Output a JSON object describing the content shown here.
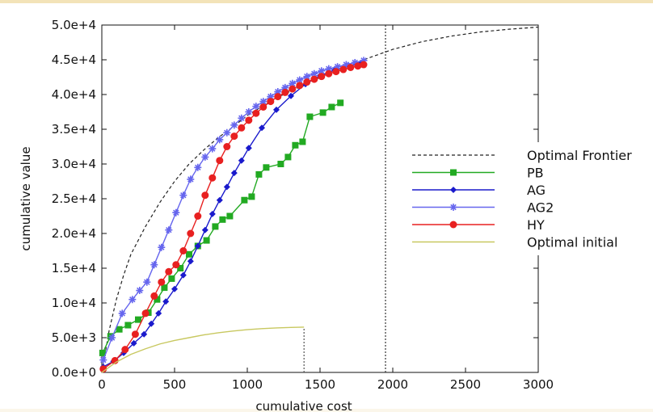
{
  "chart_data": {
    "type": "line",
    "title": "",
    "xlabel": "cumulative cost",
    "ylabel": "cumulative value",
    "xlim": [
      0,
      3000
    ],
    "ylim": [
      0,
      50000
    ],
    "x_ticks": [
      "0",
      "500",
      "1000",
      "1500",
      "2000",
      "2500",
      "3000"
    ],
    "x_tick_values": [
      0,
      500,
      1000,
      1500,
      2000,
      2500,
      3000
    ],
    "y_ticks": [
      "0.0e+0",
      "5.0e+3",
      "1.0e+4",
      "1.5e+4",
      "2.0e+4",
      "2.5e+4",
      "3.0e+4",
      "3.5e+4",
      "4.0e+4",
      "4.5e+4",
      "5.0e+4"
    ],
    "y_tick_values": [
      0,
      5000,
      10000,
      15000,
      20000,
      25000,
      30000,
      35000,
      40000,
      45000,
      50000
    ],
    "grid": false,
    "legend_position": "right",
    "vertical_markers": [
      {
        "x": 1390,
        "y_top": 6500,
        "color": "#555555"
      },
      {
        "x": 1950,
        "y_top": 50000,
        "color": "#333333"
      }
    ],
    "series": [
      {
        "name": "Optimal Frontier",
        "color": "#222222",
        "style": "dashed",
        "marker": "none",
        "x": [
          0,
          50,
          100,
          150,
          200,
          300,
          400,
          500,
          600,
          700,
          800,
          900,
          1000,
          1200,
          1400,
          1600,
          1800,
          2000,
          2200,
          2400,
          2600,
          2800,
          3000
        ],
        "y": [
          0,
          6000,
          10500,
          14000,
          17000,
          21000,
          24500,
          27500,
          30000,
          32000,
          33800,
          35300,
          37000,
          39500,
          41500,
          43400,
          45000,
          46500,
          47600,
          48400,
          49000,
          49400,
          49700
        ]
      },
      {
        "name": "PB",
        "color": "#22aa22",
        "style": "solid",
        "marker": "square",
        "x": [
          5,
          60,
          120,
          180,
          250,
          320,
          380,
          430,
          480,
          540,
          600,
          660,
          720,
          780,
          830,
          880,
          980,
          1030,
          1080,
          1130,
          1230,
          1280,
          1330,
          1380,
          1430,
          1520,
          1580,
          1640
        ],
        "y": [
          2800,
          5200,
          6200,
          6800,
          7600,
          8600,
          10500,
          12200,
          13500,
          15000,
          17000,
          18200,
          19000,
          21000,
          22000,
          22500,
          24800,
          25300,
          28500,
          29500,
          30000,
          31000,
          32700,
          33200,
          36800,
          37400,
          38200,
          38800
        ]
      },
      {
        "name": "AG",
        "color": "#1a1acc",
        "style": "solid",
        "marker": "diamond",
        "x": [
          10,
          80,
          150,
          220,
          290,
          340,
          390,
          440,
          500,
          560,
          610,
          660,
          710,
          760,
          810,
          860,
          910,
          960,
          1010,
          1100,
          1200,
          1300,
          1400,
          1500,
          1600,
          1700,
          1780
        ],
        "y": [
          800,
          1600,
          2800,
          4200,
          5500,
          7000,
          8500,
          10200,
          12000,
          14000,
          16000,
          18200,
          20500,
          22800,
          24800,
          26700,
          28700,
          30500,
          32300,
          35200,
          37800,
          39800,
          41500,
          42700,
          43500,
          44100,
          44500
        ]
      },
      {
        "name": "AG2",
        "color": "#6666ee",
        "style": "solid",
        "marker": "star",
        "x": [
          10,
          70,
          140,
          210,
          260,
          310,
          360,
          410,
          460,
          510,
          560,
          610,
          660,
          710,
          760,
          810,
          860,
          910,
          960,
          1010,
          1060,
          1110,
          1160,
          1210,
          1260,
          1310,
          1360,
          1410,
          1460,
          1510,
          1560,
          1620,
          1680,
          1740,
          1800
        ],
        "y": [
          1800,
          5000,
          8500,
          10500,
          11800,
          13000,
          15500,
          18000,
          20500,
          23000,
          25500,
          27800,
          29500,
          31000,
          32200,
          33500,
          34500,
          35600,
          36600,
          37500,
          38300,
          39000,
          39700,
          40400,
          41000,
          41600,
          42100,
          42600,
          43000,
          43400,
          43700,
          44000,
          44300,
          44600,
          44900
        ]
      },
      {
        "name": "HY",
        "color": "#e82020",
        "style": "solid",
        "marker": "circle",
        "x": [
          10,
          90,
          160,
          230,
          300,
          360,
          410,
          460,
          510,
          560,
          610,
          660,
          710,
          760,
          810,
          860,
          910,
          960,
          1010,
          1060,
          1110,
          1160,
          1210,
          1260,
          1310,
          1360,
          1410,
          1460,
          1510,
          1560,
          1610,
          1660,
          1710,
          1760,
          1800
        ],
        "y": [
          500,
          1700,
          3300,
          5500,
          8500,
          11000,
          13000,
          14500,
          15500,
          17500,
          20000,
          22500,
          25500,
          28000,
          30500,
          32500,
          34000,
          35200,
          36300,
          37300,
          38200,
          39000,
          39700,
          40300,
          40800,
          41300,
          41800,
          42200,
          42600,
          43000,
          43300,
          43600,
          43900,
          44100,
          44300
        ]
      },
      {
        "name": "Optimal initial",
        "color": "#c8c860",
        "style": "solid",
        "marker": "none",
        "x": [
          0,
          100,
          200,
          300,
          400,
          500,
          600,
          700,
          800,
          900,
          1000,
          1100,
          1200,
          1300,
          1390
        ],
        "y": [
          0,
          1500,
          2600,
          3400,
          4100,
          4600,
          5000,
          5400,
          5700,
          5950,
          6150,
          6300,
          6400,
          6480,
          6520
        ]
      }
    ]
  }
}
